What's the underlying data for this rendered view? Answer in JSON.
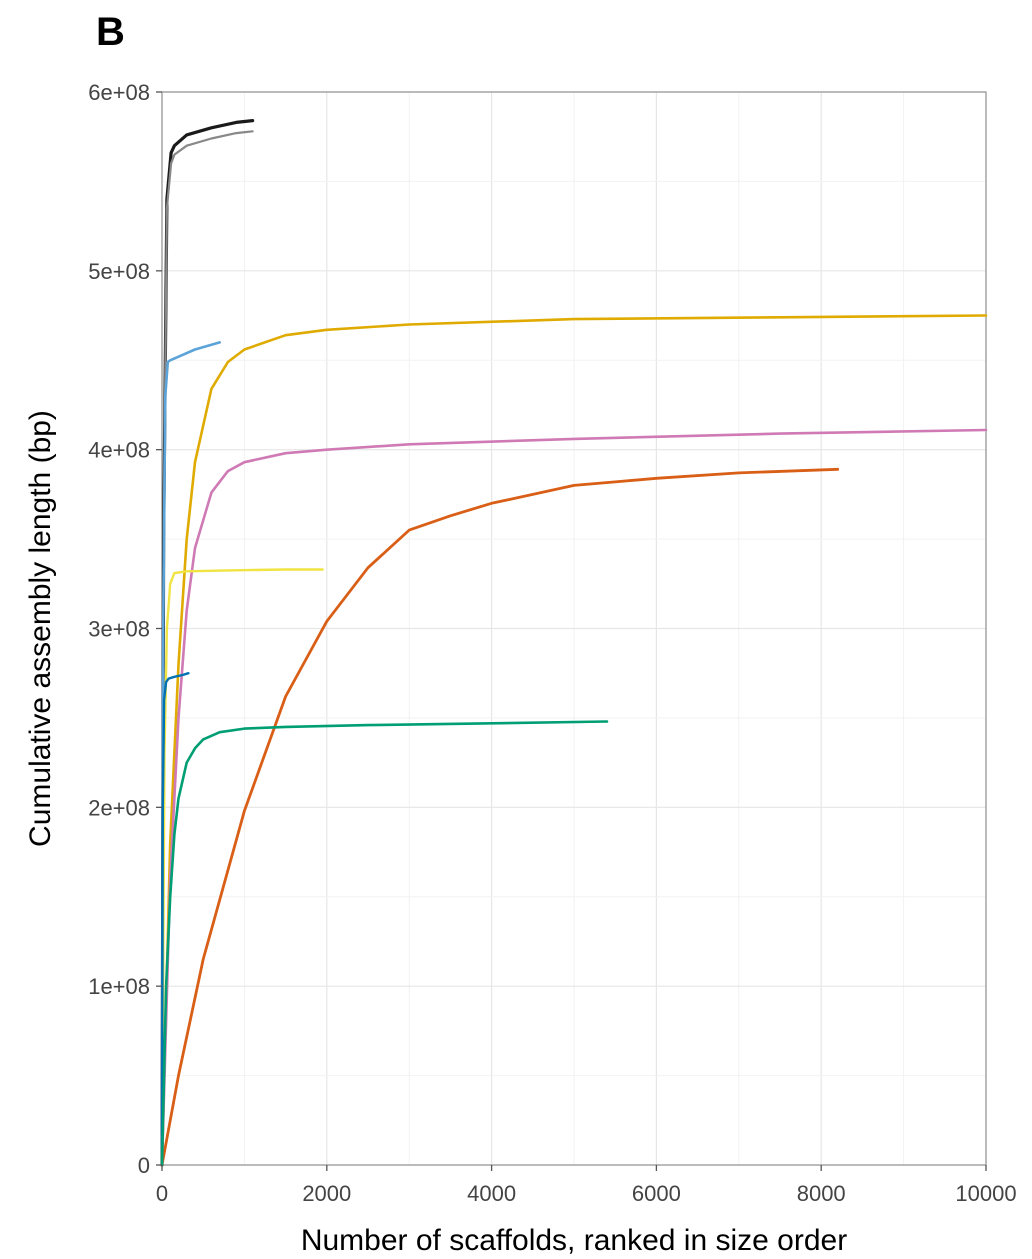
{
  "panel_label": "B",
  "chart_data": {
    "type": "line",
    "title": "",
    "xlabel": "Number of scaffolds, ranked in size order",
    "ylabel": "Cumulative assembly length (bp)",
    "xlim": [
      0,
      10000
    ],
    "ylim": [
      0,
      600000000
    ],
    "x_ticks": [
      0,
      2000,
      4000,
      6000,
      8000,
      10000
    ],
    "x_tick_labels": [
      "0",
      "2000",
      "4000",
      "6000",
      "8000",
      "10000"
    ],
    "y_ticks": [
      0,
      100000000,
      200000000,
      300000000,
      400000000,
      500000000,
      600000000
    ],
    "y_tick_labels": [
      "0",
      "1e+08",
      "2e+08",
      "3e+08",
      "4e+08",
      "5e+08",
      "6e+08"
    ],
    "grid": true,
    "legend": "none",
    "series": [
      {
        "color": "#1a1a1a",
        "width": 3.2,
        "x": [
          0,
          20,
          60,
          110,
          150,
          300,
          600,
          900,
          1100
        ],
        "y": [
          0,
          350000000,
          540000000,
          566000000,
          570000000,
          576000000,
          580000000,
          583000000,
          584000000
        ]
      },
      {
        "color": "#888888",
        "width": 2.2,
        "x": [
          0,
          20,
          60,
          110,
          150,
          300,
          600,
          900,
          1100
        ],
        "y": [
          0,
          345000000,
          535000000,
          560000000,
          565000000,
          570000000,
          574000000,
          577000000,
          578000000
        ]
      },
      {
        "color": "#5ba3d9",
        "width": 2.6,
        "x": [
          0,
          15,
          40,
          70,
          100,
          200,
          400,
          700
        ],
        "y": [
          0,
          300000000,
          430000000,
          449000000,
          450000000,
          452000000,
          456000000,
          460000000
        ]
      },
      {
        "color": "#e0ab00",
        "width": 2.6,
        "x": [
          0,
          100,
          200,
          300,
          400,
          600,
          800,
          1000,
          1500,
          2000,
          3000,
          5000,
          7500,
          10000
        ],
        "y": [
          0,
          180000000,
          280000000,
          350000000,
          393000000,
          434000000,
          449000000,
          456000000,
          464000000,
          467000000,
          470000000,
          473000000,
          474000000,
          475000000
        ]
      },
      {
        "color": "#cf7ab5",
        "width": 2.6,
        "x": [
          0,
          100,
          200,
          300,
          400,
          600,
          800,
          1000,
          1500,
          2000,
          3000,
          5000,
          7500,
          10000
        ],
        "y": [
          0,
          160000000,
          250000000,
          310000000,
          345000000,
          376000000,
          388000000,
          393000000,
          398000000,
          400000000,
          403000000,
          406000000,
          409000000,
          411000000
        ]
      },
      {
        "color": "#d95e16",
        "width": 2.8,
        "x": [
          0,
          200,
          500,
          1000,
          1500,
          2000,
          2500,
          3000,
          3500,
          4000,
          4500,
          5000,
          5500,
          6000,
          7000,
          8200
        ],
        "y": [
          0,
          50000000,
          115000000,
          198000000,
          262000000,
          304000000,
          334000000,
          355000000,
          363000000,
          370000000,
          375000000,
          380000000,
          382000000,
          384000000,
          387000000,
          389000000
        ]
      },
      {
        "color": "#f0e442",
        "width": 2.4,
        "x": [
          0,
          30,
          60,
          100,
          150,
          300,
          800,
          1500,
          1950
        ],
        "y": [
          0,
          230000000,
          300000000,
          325000000,
          331000000,
          332000000,
          332500000,
          333000000,
          333000000
        ]
      },
      {
        "color": "#0072b2",
        "width": 2.4,
        "x": [
          0,
          10,
          25,
          50,
          80,
          150,
          250,
          320
        ],
        "y": [
          0,
          200000000,
          260000000,
          270000000,
          272000000,
          273000000,
          274000000,
          275000000
        ]
      },
      {
        "color": "#009e73",
        "width": 2.6,
        "x": [
          0,
          50,
          100,
          150,
          200,
          300,
          400,
          500,
          700,
          1000,
          1500,
          2500,
          4000,
          5400
        ],
        "y": [
          0,
          100000000,
          150000000,
          185000000,
          205000000,
          225000000,
          233000000,
          238000000,
          242000000,
          244000000,
          245000000,
          246000000,
          247000000,
          248000000
        ]
      }
    ]
  }
}
